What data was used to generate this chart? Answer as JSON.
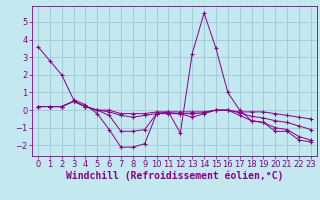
{
  "background_color": "#c4e8f0",
  "grid_color": "#9ec8d8",
  "line_color": "#880088",
  "xlim": [
    -0.5,
    23.5
  ],
  "ylim": [
    -2.6,
    5.9
  ],
  "xlabel": "Windchill (Refroidissement éolien,°C)",
  "xlabel_fontsize": 7,
  "xticks": [
    0,
    1,
    2,
    3,
    4,
    5,
    6,
    7,
    8,
    9,
    10,
    11,
    12,
    13,
    14,
    15,
    16,
    17,
    18,
    19,
    20,
    21,
    22,
    23
  ],
  "yticks": [
    -2,
    -1,
    0,
    1,
    2,
    3,
    4,
    5
  ],
  "tick_fontsize": 6,
  "series": [
    [
      3.6,
      2.8,
      2.0,
      0.6,
      0.3,
      -0.2,
      -1.1,
      -2.1,
      -2.1,
      -1.9,
      -0.2,
      -0.1,
      -1.3,
      3.2,
      5.5,
      3.5,
      1.0,
      0.0,
      -0.6,
      -0.7,
      -1.2,
      -1.2,
      -1.7,
      -1.8
    ],
    [
      0.2,
      0.2,
      0.2,
      0.5,
      0.2,
      0.0,
      0.0,
      -0.2,
      -0.2,
      -0.2,
      -0.1,
      -0.1,
      -0.1,
      -0.1,
      -0.1,
      0.0,
      0.0,
      -0.1,
      -0.1,
      -0.1,
      -0.2,
      -0.3,
      -0.4,
      -0.5
    ],
    [
      0.2,
      0.2,
      0.2,
      0.5,
      0.2,
      0.0,
      -0.1,
      -0.3,
      -0.4,
      -0.3,
      -0.2,
      -0.15,
      -0.2,
      -0.2,
      -0.15,
      0.0,
      0.0,
      -0.15,
      -0.35,
      -0.45,
      -0.6,
      -0.7,
      -0.9,
      -1.1
    ],
    [
      0.2,
      0.2,
      0.2,
      0.5,
      0.2,
      0.0,
      -0.3,
      -1.2,
      -1.2,
      -1.1,
      -0.2,
      -0.2,
      -0.2,
      -0.4,
      -0.2,
      0.0,
      0.0,
      -0.3,
      -0.6,
      -0.7,
      -1.0,
      -1.1,
      -1.5,
      -1.7
    ]
  ]
}
